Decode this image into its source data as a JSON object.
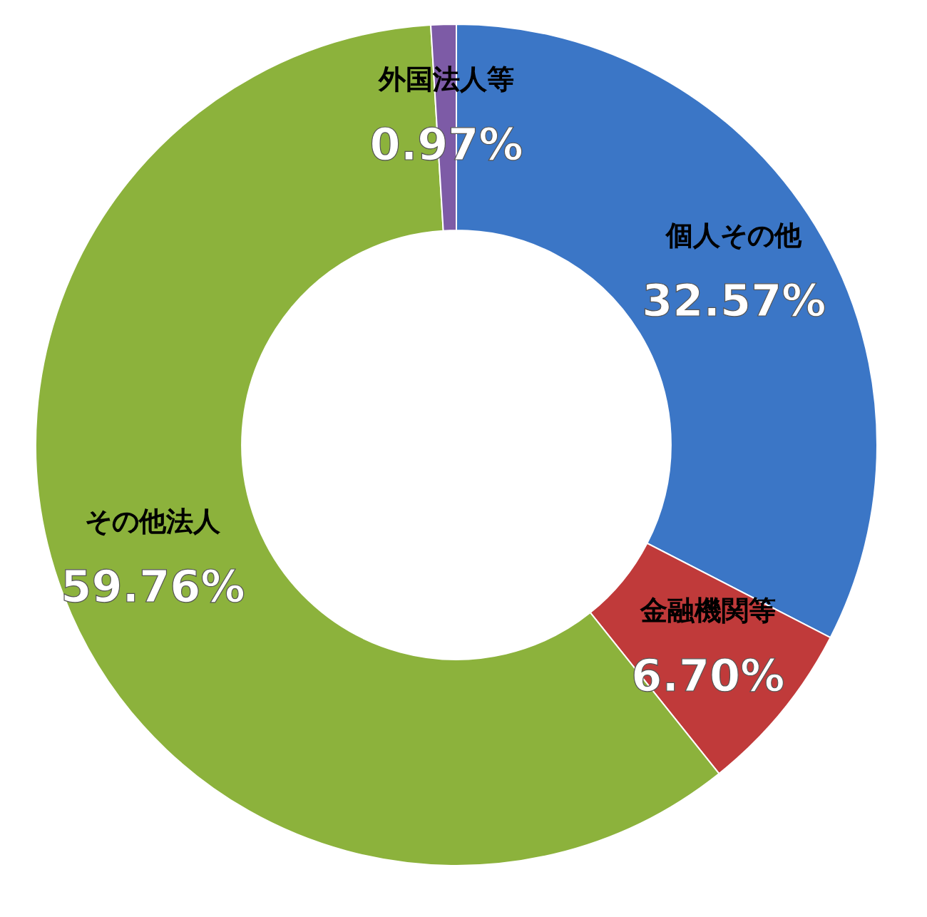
{
  "chart_data": {
    "type": "donut",
    "categories": [
      "個人その他",
      "金融機関等",
      "その他法人",
      "外国法人等"
    ],
    "values": [
      32.57,
      6.7,
      59.76,
      0.97
    ],
    "colors": [
      "#3b76c6",
      "#c03a3a",
      "#8cb23c",
      "#7d5ba6"
    ],
    "value_labels": [
      "32.57%",
      "6.70%",
      "59.76%",
      "0.97%"
    ]
  }
}
